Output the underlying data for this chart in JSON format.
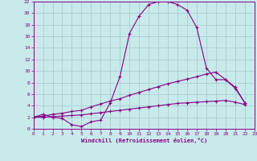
{
  "xlabel": "Windchill (Refroidissement éolien,°C)",
  "bg_color": "#c8eaea",
  "grid_color": "#a0c8d0",
  "line_color": "#880088",
  "xmin": 0,
  "xmax": 23,
  "ymin": 0,
  "ymax": 22,
  "yticks": [
    0,
    2,
    4,
    6,
    8,
    10,
    12,
    14,
    16,
    18,
    20,
    22
  ],
  "xticks": [
    0,
    1,
    2,
    3,
    4,
    5,
    6,
    7,
    8,
    9,
    10,
    11,
    12,
    13,
    14,
    15,
    16,
    17,
    18,
    19,
    20,
    21,
    22,
    23
  ],
  "line1_x": [
    0,
    1,
    2,
    3,
    4,
    5,
    6,
    7,
    8,
    9,
    10,
    11,
    12,
    13,
    14,
    15,
    16,
    17,
    18,
    19,
    20,
    21,
    22
  ],
  "line1_y": [
    2.0,
    2.5,
    2.0,
    1.8,
    0.7,
    0.4,
    1.2,
    1.5,
    4.5,
    9.0,
    16.5,
    19.5,
    21.5,
    22.0,
    22.0,
    21.5,
    20.5,
    17.5,
    10.5,
    8.5,
    8.5,
    7.0,
    4.5
  ],
  "line2_x": [
    0,
    1,
    2,
    3,
    4,
    5,
    6,
    7,
    8,
    9,
    10,
    11,
    12,
    13,
    14,
    15,
    16,
    17,
    18,
    19,
    20,
    21,
    22
  ],
  "line2_y": [
    2.0,
    2.2,
    2.5,
    2.7,
    3.0,
    3.2,
    3.8,
    4.3,
    4.8,
    5.2,
    5.8,
    6.3,
    6.8,
    7.3,
    7.8,
    8.2,
    8.6,
    9.0,
    9.5,
    9.8,
    8.5,
    7.2,
    4.5
  ],
  "line3_x": [
    0,
    1,
    2,
    3,
    4,
    5,
    6,
    7,
    8,
    9,
    10,
    11,
    12,
    13,
    14,
    15,
    16,
    17,
    18,
    19,
    20,
    21,
    22
  ],
  "line3_y": [
    2.0,
    2.0,
    2.1,
    2.2,
    2.3,
    2.4,
    2.6,
    2.8,
    3.0,
    3.2,
    3.4,
    3.6,
    3.8,
    4.0,
    4.2,
    4.4,
    4.5,
    4.6,
    4.7,
    4.8,
    4.9,
    4.6,
    4.2
  ]
}
